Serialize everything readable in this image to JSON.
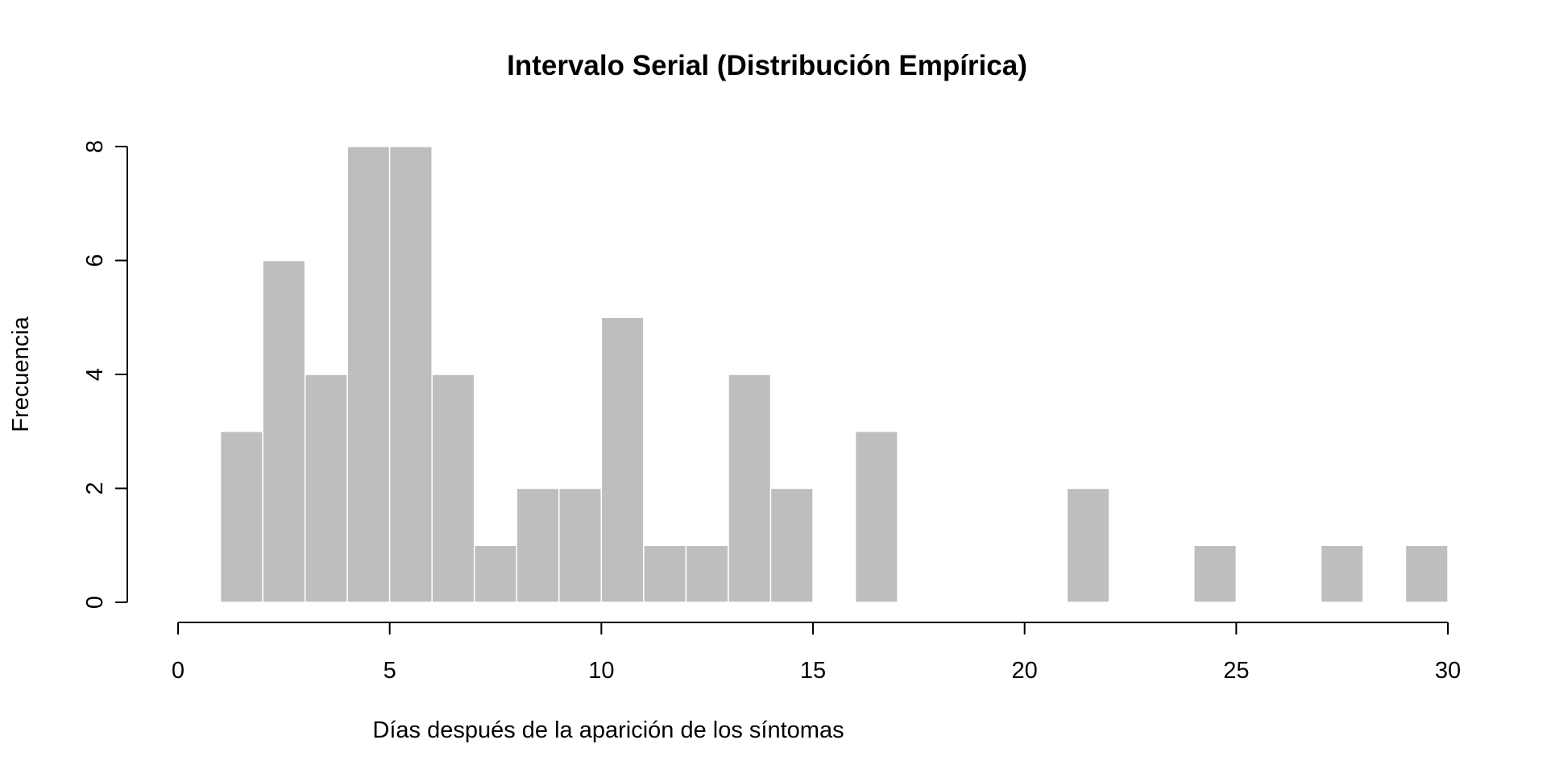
{
  "chart_data": {
    "type": "bar",
    "title": "Intervalo Serial (Distribución Empírica)",
    "xlabel": "Días después de la aparición de los síntomas",
    "ylabel": "Frecuencia",
    "xlim": [
      0,
      30
    ],
    "ylim": [
      0,
      8
    ],
    "xticks": [
      0,
      5,
      10,
      15,
      20,
      25,
      30
    ],
    "yticks": [
      0,
      2,
      4,
      6,
      8
    ],
    "bin_width": 1,
    "bins": [
      {
        "start": 1,
        "end": 2,
        "count": 3
      },
      {
        "start": 2,
        "end": 3,
        "count": 6
      },
      {
        "start": 3,
        "end": 4,
        "count": 4
      },
      {
        "start": 4,
        "end": 5,
        "count": 8
      },
      {
        "start": 5,
        "end": 6,
        "count": 8
      },
      {
        "start": 6,
        "end": 7,
        "count": 4
      },
      {
        "start": 7,
        "end": 8,
        "count": 1
      },
      {
        "start": 8,
        "end": 9,
        "count": 2
      },
      {
        "start": 9,
        "end": 10,
        "count": 2
      },
      {
        "start": 10,
        "end": 11,
        "count": 5
      },
      {
        "start": 11,
        "end": 12,
        "count": 1
      },
      {
        "start": 12,
        "end": 13,
        "count": 1
      },
      {
        "start": 13,
        "end": 14,
        "count": 4
      },
      {
        "start": 14,
        "end": 15,
        "count": 2
      },
      {
        "start": 16,
        "end": 17,
        "count": 3
      },
      {
        "start": 21,
        "end": 22,
        "count": 2
      },
      {
        "start": 24,
        "end": 25,
        "count": 1
      },
      {
        "start": 27,
        "end": 28,
        "count": 1
      },
      {
        "start": 29,
        "end": 30,
        "count": 1
      }
    ],
    "bar_color": "#bebebe",
    "bar_border_color": "#ffffff",
    "grid": false
  }
}
